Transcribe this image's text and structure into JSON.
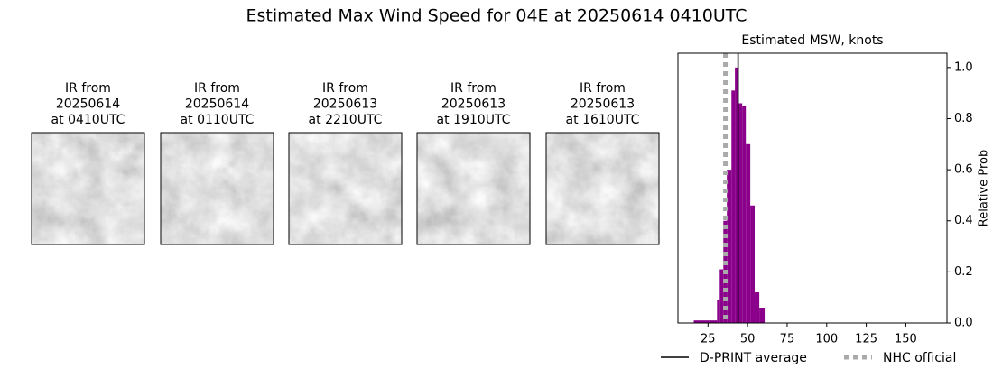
{
  "title": "Estimated Max Wind Speed for 04E at 20250614 0410UTC",
  "panels": [
    {
      "lines": [
        "IR from",
        "20250614",
        "at 0410UTC"
      ]
    },
    {
      "lines": [
        "IR from",
        "20250614",
        "at 0110UTC"
      ]
    },
    {
      "lines": [
        "IR from",
        "20250613",
        "at 2210UTC"
      ]
    },
    {
      "lines": [
        "IR from",
        "20250613",
        "at 1910UTC"
      ]
    },
    {
      "lines": [
        "IR from",
        "20250613",
        "at 1610UTC"
      ]
    }
  ],
  "chart_data": {
    "type": "histogram",
    "title": "Estimated MSW, knots",
    "y_label": "Relative Prob",
    "bins": [
      16,
      30.7,
      32.4,
      34.7,
      36.9,
      39.8,
      42,
      44.3,
      46.6,
      48.9,
      51.7,
      54.5,
      57.4,
      60.8
    ],
    "values": [
      0.01,
      0.09,
      0.21,
      0.4,
      0.6,
      0.91,
      1.0,
      0.86,
      0.85,
      0.7,
      0.46,
      0.12,
      0.06
    ],
    "color": "#8b008b",
    "xlim": [
      6,
      176
    ],
    "xticks": [
      25,
      50,
      75,
      100,
      125,
      150
    ],
    "ylim": [
      0,
      1.056
    ],
    "yticks": [
      {
        "value": 0,
        "label": "0.0"
      },
      {
        "value": 0.2,
        "label": "0.2"
      },
      {
        "value": 0.4,
        "label": "0.4"
      },
      {
        "value": 0.6,
        "label": "0.6"
      },
      {
        "value": 0.8,
        "label": "0.8"
      },
      {
        "value": 1,
        "label": "1.0"
      }
    ],
    "y_axis_side": "right",
    "lines": [
      {
        "name": "D-PRINT average",
        "value": 44,
        "color": "#000000",
        "style": "solid"
      },
      {
        "name": "NHC official",
        "value": 36,
        "color": "#aaaaaa",
        "style": "dotted"
      }
    ]
  }
}
